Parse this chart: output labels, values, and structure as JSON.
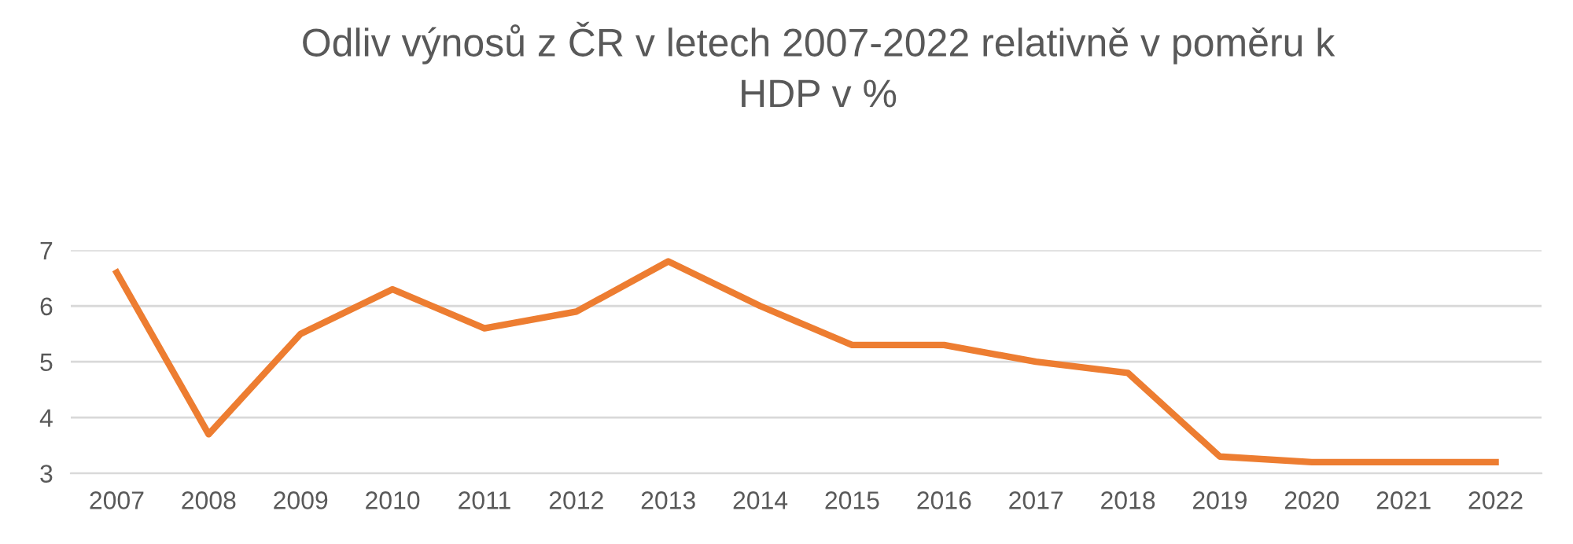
{
  "chart_data": {
    "type": "line",
    "title": "Odliv výnosů z ČR v letech 2007-2022 relativně v poměru k\nHDP v %",
    "categories": [
      "2007",
      "2008",
      "2009",
      "2010",
      "2011",
      "2012",
      "2013",
      "2014",
      "2015",
      "2016",
      "2017",
      "2018",
      "2019",
      "2020",
      "2021",
      "2022"
    ],
    "series": [
      {
        "color": "#ed7d31",
        "values": [
          6.6,
          3.7,
          5.5,
          6.3,
          5.6,
          5.9,
          6.8,
          6.0,
          5.3,
          5.3,
          5.0,
          4.8,
          3.3,
          3.2,
          3.2,
          3.2
        ]
      }
    ],
    "ylim": [
      3,
      7
    ],
    "yticks": [
      3,
      4,
      5,
      6,
      7
    ],
    "grid": "y",
    "legend": false,
    "marker": "none",
    "line_style": "solid"
  }
}
